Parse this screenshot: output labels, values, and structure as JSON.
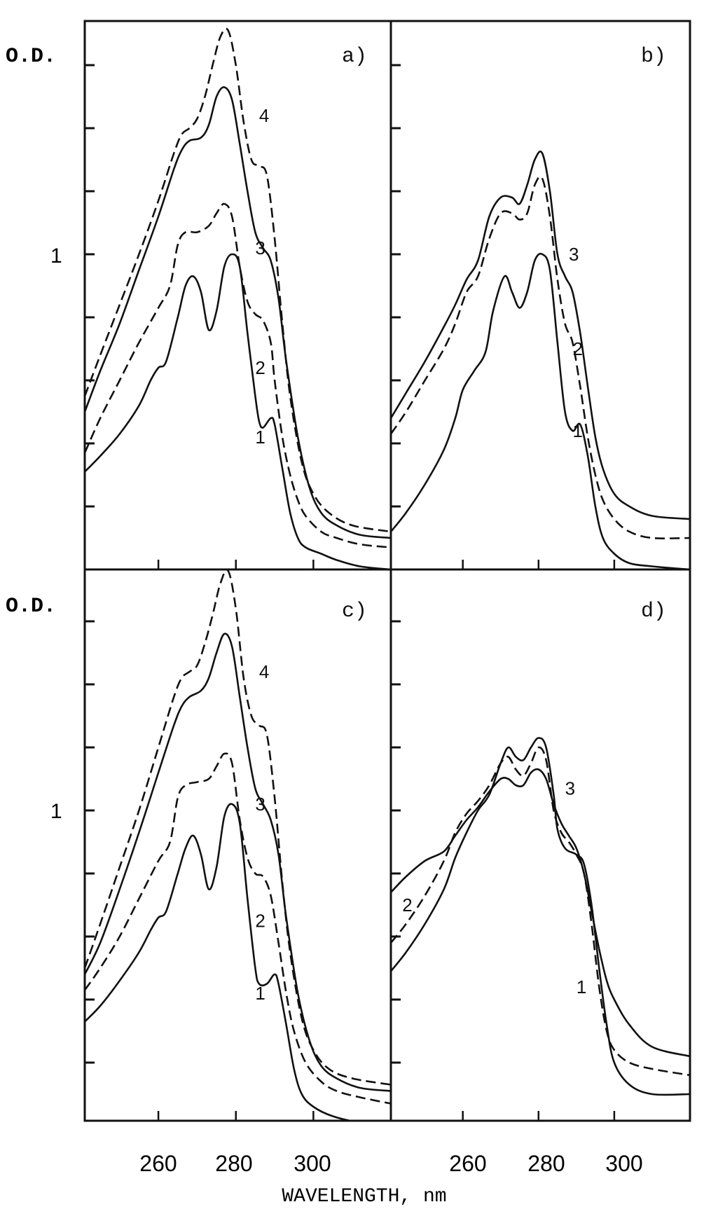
{
  "figure": {
    "y_axis_label": "O.D.",
    "y_unit_label": "1",
    "x_axis_title": "WAVELENGTH, nm",
    "x_tick_labels": [
      "260",
      "280",
      "300"
    ],
    "line_color": "#111111",
    "background": "#ffffff"
  },
  "chart_data": [
    {
      "type": "line",
      "panel": "a)",
      "title": "",
      "xlabel": "WAVELENGTH, nm",
      "ylabel": "O.D.",
      "xlim": [
        241,
        320
      ],
      "ylim": [
        0,
        1.75
      ],
      "yticks": [
        0.2,
        0.4,
        0.6,
        0.8,
        1.0,
        1.2,
        1.4,
        1.6
      ],
      "ytick_labels": {
        "1.0": "1"
      },
      "xticks": [
        260,
        280,
        300
      ],
      "grid": false,
      "series": [
        {
          "name": "1",
          "style": "solid",
          "label_pos": [
            285,
            0.4
          ],
          "x": [
            241,
            245,
            250,
            255,
            258,
            260,
            262,
            265,
            267,
            269,
            271,
            273,
            275,
            277,
            279,
            281,
            283,
            285,
            286,
            287,
            289,
            290,
            292,
            294,
            296,
            298,
            302,
            306,
            312,
            320
          ],
          "y": [
            0.31,
            0.36,
            0.43,
            0.52,
            0.6,
            0.64,
            0.66,
            0.8,
            0.9,
            0.93,
            0.88,
            0.76,
            0.82,
            0.96,
            1.0,
            0.96,
            0.75,
            0.55,
            0.47,
            0.45,
            0.48,
            0.46,
            0.32,
            0.18,
            0.1,
            0.07,
            0.05,
            0.03,
            0.01,
            0.0
          ]
        },
        {
          "name": "2",
          "style": "dashed",
          "label_pos": [
            285,
            0.62
          ],
          "x": [
            241,
            245,
            250,
            255,
            260,
            263,
            265,
            267,
            270,
            273,
            275,
            277,
            279,
            281,
            283,
            285,
            287,
            289,
            290,
            292,
            294,
            296,
            298,
            302,
            306,
            312,
            320
          ],
          "y": [
            0.37,
            0.48,
            0.6,
            0.72,
            0.83,
            0.9,
            1.03,
            1.07,
            1.07,
            1.09,
            1.13,
            1.16,
            1.12,
            0.96,
            0.85,
            0.81,
            0.79,
            0.72,
            0.6,
            0.42,
            0.3,
            0.22,
            0.17,
            0.12,
            0.1,
            0.08,
            0.07
          ]
        },
        {
          "name": "3",
          "style": "solid",
          "label_pos": [
            285,
            1.0
          ],
          "x": [
            241,
            245,
            250,
            255,
            260,
            264,
            266,
            268,
            271,
            273,
            275,
            277,
            279,
            281,
            283,
            285,
            287,
            289,
            291,
            293,
            296,
            299,
            302,
            306,
            312,
            320
          ],
          "y": [
            0.5,
            0.63,
            0.78,
            0.95,
            1.12,
            1.27,
            1.33,
            1.36,
            1.37,
            1.41,
            1.5,
            1.53,
            1.49,
            1.35,
            1.2,
            1.07,
            1.02,
            0.98,
            0.86,
            0.66,
            0.42,
            0.26,
            0.18,
            0.14,
            0.11,
            0.1
          ]
        },
        {
          "name": "4",
          "style": "dashed",
          "label_pos": [
            286,
            1.42
          ],
          "x": [
            241,
            245,
            250,
            255,
            260,
            264,
            266,
            268,
            270,
            272,
            274,
            276,
            278,
            280,
            282,
            284,
            286,
            288,
            290,
            292,
            294,
            297,
            300,
            304,
            310,
            320
          ],
          "y": [
            0.55,
            0.68,
            0.84,
            1.0,
            1.17,
            1.32,
            1.38,
            1.4,
            1.43,
            1.5,
            1.6,
            1.69,
            1.71,
            1.6,
            1.42,
            1.3,
            1.28,
            1.25,
            1.05,
            0.78,
            0.55,
            0.34,
            0.24,
            0.18,
            0.14,
            0.12
          ]
        }
      ]
    },
    {
      "type": "line",
      "panel": "b)",
      "title": "",
      "xlabel": "WAVELENGTH, nm",
      "ylabel": "O.D.",
      "xlim": [
        241,
        320
      ],
      "ylim": [
        0,
        1.75
      ],
      "yticks": [
        0.2,
        0.4,
        0.6,
        0.8,
        1.0,
        1.2,
        1.4,
        1.6
      ],
      "xticks": [
        260,
        280,
        300
      ],
      "grid": false,
      "series": [
        {
          "name": "1",
          "style": "solid",
          "label_pos": [
            289,
            0.42
          ],
          "x": [
            241,
            245,
            250,
            255,
            258,
            260,
            263,
            266,
            268,
            271,
            273,
            275,
            277,
            279,
            281,
            283,
            285,
            287,
            289,
            291,
            293,
            295,
            297,
            300,
            304,
            310,
            320
          ],
          "y": [
            0.12,
            0.18,
            0.27,
            0.38,
            0.48,
            0.57,
            0.63,
            0.69,
            0.82,
            0.93,
            0.88,
            0.83,
            0.88,
            0.98,
            1.0,
            0.95,
            0.72,
            0.5,
            0.44,
            0.46,
            0.36,
            0.2,
            0.1,
            0.05,
            0.02,
            0.01,
            0.0
          ]
        },
        {
          "name": "2",
          "style": "dashed",
          "label_pos": [
            289,
            0.68
          ],
          "x": [
            241,
            245,
            250,
            255,
            258,
            261,
            264,
            267,
            270,
            273,
            275,
            277,
            279,
            281,
            283,
            285,
            287,
            289,
            291,
            293,
            295,
            297,
            300,
            304,
            310,
            320
          ],
          "y": [
            0.43,
            0.5,
            0.6,
            0.7,
            0.78,
            0.88,
            0.93,
            1.05,
            1.13,
            1.13,
            1.11,
            1.13,
            1.22,
            1.24,
            1.12,
            0.92,
            0.78,
            0.72,
            0.58,
            0.42,
            0.3,
            0.22,
            0.16,
            0.12,
            0.1,
            0.1
          ]
        },
        {
          "name": "3",
          "style": "solid",
          "label_pos": [
            288,
            0.98
          ],
          "x": [
            241,
            245,
            250,
            255,
            258,
            261,
            264,
            267,
            270,
            273,
            275,
            277,
            279,
            281,
            283,
            285,
            287,
            289,
            291,
            293,
            295,
            297,
            300,
            304,
            310,
            320
          ],
          "y": [
            0.48,
            0.56,
            0.66,
            0.77,
            0.84,
            0.92,
            0.98,
            1.12,
            1.18,
            1.18,
            1.16,
            1.22,
            1.3,
            1.32,
            1.2,
            1.0,
            0.93,
            0.88,
            0.75,
            0.58,
            0.42,
            0.32,
            0.24,
            0.2,
            0.17,
            0.16
          ]
        }
      ]
    },
    {
      "type": "line",
      "panel": "c)",
      "title": "",
      "xlabel": "WAVELENGTH, nm",
      "ylabel": "O.D.",
      "xlim": [
        241,
        320
      ],
      "ylim": [
        0,
        1.75
      ],
      "yticks": [
        0.2,
        0.4,
        0.6,
        0.8,
        1.0,
        1.2,
        1.4,
        1.6
      ],
      "ytick_labels": {
        "1.0": "1"
      },
      "xticks": [
        260,
        280,
        300
      ],
      "grid": false,
      "series": [
        {
          "name": "1",
          "style": "solid",
          "label_pos": [
            285,
            0.4
          ],
          "x": [
            241,
            245,
            250,
            255,
            258,
            260,
            262,
            265,
            267,
            269,
            271,
            273,
            275,
            277,
            279,
            281,
            283,
            285,
            286,
            288,
            290,
            291,
            293,
            295,
            297,
            300,
            305,
            312,
            320
          ],
          "y": [
            0.33,
            0.38,
            0.46,
            0.55,
            0.62,
            0.66,
            0.68,
            0.8,
            0.88,
            0.92,
            0.86,
            0.75,
            0.82,
            0.98,
            1.02,
            0.96,
            0.72,
            0.5,
            0.45,
            0.45,
            0.48,
            0.45,
            0.32,
            0.18,
            0.1,
            0.06,
            0.03,
            0.01,
            0.0
          ]
        },
        {
          "name": "2",
          "style": "dashed",
          "label_pos": [
            285,
            0.63
          ],
          "x": [
            241,
            245,
            250,
            255,
            260,
            263,
            265,
            267,
            270,
            273,
            275,
            277,
            279,
            281,
            283,
            285,
            287,
            289,
            291,
            293,
            295,
            298,
            302,
            306,
            312,
            320
          ],
          "y": [
            0.43,
            0.5,
            0.6,
            0.72,
            0.84,
            0.9,
            1.04,
            1.08,
            1.09,
            1.1,
            1.14,
            1.18,
            1.15,
            0.97,
            0.85,
            0.8,
            0.79,
            0.73,
            0.58,
            0.42,
            0.3,
            0.2,
            0.14,
            0.11,
            0.09,
            0.07
          ]
        },
        {
          "name": "3",
          "style": "solid",
          "label_pos": [
            285,
            1.0
          ],
          "x": [
            241,
            245,
            250,
            255,
            260,
            264,
            266,
            268,
            271,
            273,
            275,
            277,
            279,
            281,
            283,
            285,
            287,
            289,
            291,
            293,
            296,
            299,
            302,
            306,
            312,
            320
          ],
          "y": [
            0.48,
            0.58,
            0.75,
            0.93,
            1.12,
            1.27,
            1.33,
            1.36,
            1.38,
            1.42,
            1.5,
            1.56,
            1.52,
            1.36,
            1.2,
            1.07,
            1.02,
            0.97,
            0.86,
            0.66,
            0.42,
            0.27,
            0.19,
            0.15,
            0.12,
            0.11
          ]
        },
        {
          "name": "4",
          "style": "dashed",
          "label_pos": [
            286,
            1.42
          ],
          "x": [
            241,
            245,
            250,
            255,
            260,
            264,
            266,
            268,
            270,
            272,
            274,
            276,
            278,
            280,
            282,
            284,
            286,
            288,
            290,
            292,
            294,
            297,
            300,
            304,
            310,
            320
          ],
          "y": [
            0.5,
            0.64,
            0.82,
            1.0,
            1.2,
            1.36,
            1.42,
            1.44,
            1.46,
            1.53,
            1.62,
            1.72,
            1.76,
            1.64,
            1.42,
            1.3,
            1.27,
            1.24,
            1.04,
            0.77,
            0.55,
            0.34,
            0.24,
            0.18,
            0.15,
            0.13
          ]
        }
      ]
    },
    {
      "type": "line",
      "panel": "d)",
      "title": "",
      "xlabel": "WAVELENGTH, nm",
      "ylabel": "O.D.",
      "xlim": [
        241,
        320
      ],
      "ylim": [
        0,
        1.75
      ],
      "yticks": [
        0.2,
        0.4,
        0.6,
        0.8,
        1.0,
        1.2,
        1.4,
        1.6
      ],
      "xticks": [
        260,
        280,
        300
      ],
      "grid": false,
      "series": [
        {
          "name": "1",
          "style": "solid",
          "label_pos": [
            290,
            0.42
          ],
          "x": [
            241,
            245,
            250,
            255,
            258,
            261,
            264,
            267,
            270,
            272,
            274,
            276,
            278,
            280,
            282,
            284,
            285,
            287,
            290,
            292,
            294,
            296,
            298,
            300,
            304,
            310,
            320
          ],
          "y": [
            0.49,
            0.55,
            0.64,
            0.75,
            0.85,
            0.93,
            1.0,
            1.05,
            1.15,
            1.2,
            1.17,
            1.16,
            1.2,
            1.23,
            1.2,
            1.05,
            0.94,
            0.88,
            0.86,
            0.83,
            0.7,
            0.5,
            0.32,
            0.2,
            0.13,
            0.1,
            0.1
          ]
        },
        {
          "name": "2",
          "style": "dashed",
          "label_pos": [
            244,
            0.68
          ],
          "x": [
            241,
            245,
            250,
            255,
            258,
            261,
            264,
            267,
            270,
            272,
            274,
            276,
            278,
            280,
            282,
            284,
            286,
            288,
            290,
            292,
            294,
            296,
            298,
            300,
            304,
            310,
            320
          ],
          "y": [
            0.58,
            0.64,
            0.73,
            0.84,
            0.93,
            0.99,
            1.03,
            1.08,
            1.15,
            1.17,
            1.13,
            1.11,
            1.15,
            1.2,
            1.16,
            1.0,
            0.93,
            0.9,
            0.86,
            0.8,
            0.64,
            0.44,
            0.3,
            0.24,
            0.2,
            0.18,
            0.16
          ]
        },
        {
          "name": "3",
          "style": "solid",
          "label_pos": [
            287,
            1.05
          ],
          "x": [
            241,
            245,
            250,
            255,
            258,
            261,
            264,
            267,
            270,
            272,
            274,
            276,
            278,
            280,
            282,
            284,
            286,
            288,
            290,
            292,
            294,
            296,
            298,
            300,
            304,
            310,
            320
          ],
          "y": [
            0.74,
            0.79,
            0.84,
            0.87,
            0.92,
            0.97,
            1.01,
            1.06,
            1.1,
            1.1,
            1.08,
            1.08,
            1.12,
            1.13,
            1.1,
            1.02,
            0.96,
            0.92,
            0.88,
            0.8,
            0.68,
            0.56,
            0.46,
            0.4,
            0.32,
            0.25,
            0.22
          ]
        }
      ]
    }
  ]
}
